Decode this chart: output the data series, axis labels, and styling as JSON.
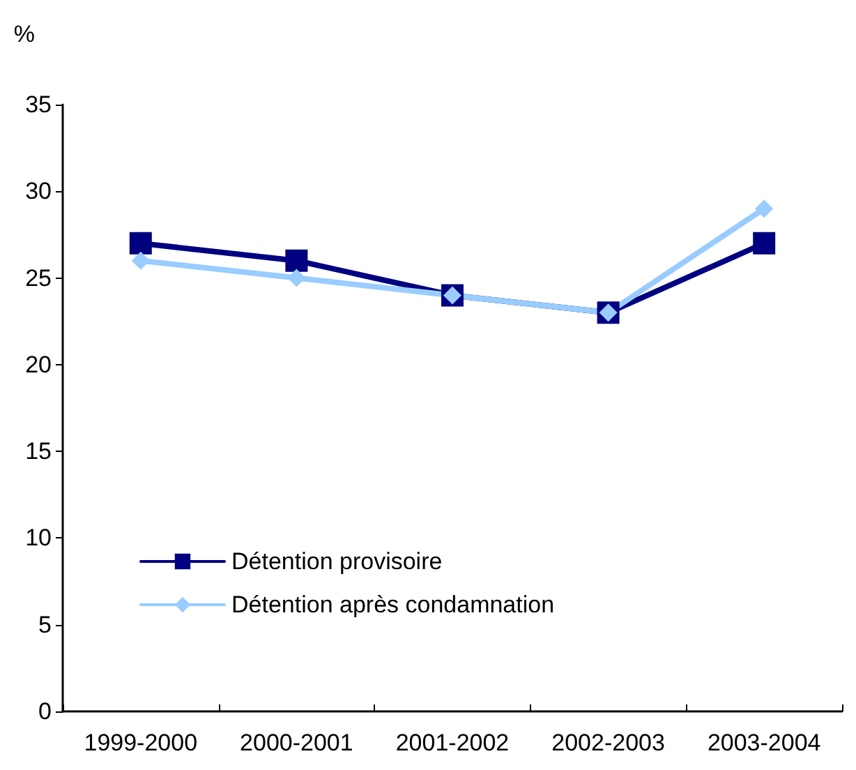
{
  "chart_data": {
    "type": "line",
    "ylabel": "%",
    "categories": [
      "1999-2000",
      "2000-2001",
      "2001-2002",
      "2002-2003",
      "2003-2004"
    ],
    "series": [
      {
        "name": "Détention provisoire",
        "color": "#000080",
        "marker": "square",
        "values": [
          27,
          26,
          24,
          23,
          27
        ]
      },
      {
        "name": "Détention après condamnation",
        "color": "#99ccff",
        "marker": "diamond",
        "values": [
          26,
          25,
          24,
          23,
          29
        ]
      }
    ],
    "ylim": [
      0,
      35
    ],
    "yticks": [
      0,
      5,
      10,
      15,
      20,
      25,
      30,
      35
    ],
    "grid": false,
    "legend": "bottom left",
    "line_style": "solid"
  }
}
